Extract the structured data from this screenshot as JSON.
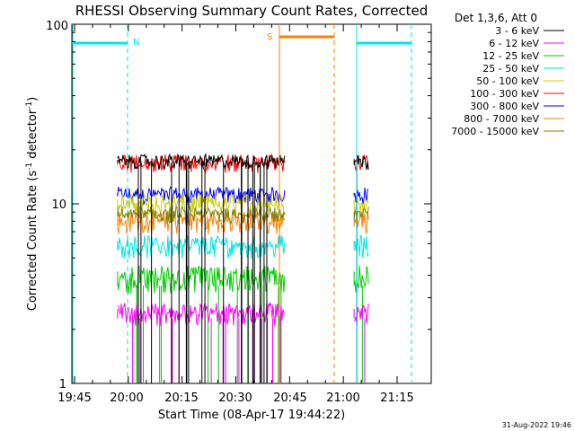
{
  "chart_data": {
    "type": "line",
    "title": "RHESSI Observing Summary Count Rates, Corrected",
    "xlabel": "Start Time (08-Apr-17 19:44:22)",
    "ylabel_main": "Corrected Count Rate (s",
    "ylabel_sup1": "-1",
    "ylabel_mid": " detector",
    "ylabel_sup2": "-1",
    "ylabel_end": ")",
    "y_scale": "log",
    "ylim": [
      1,
      100
    ],
    "xlim_minutes": [
      19.6,
      20.0
    ],
    "x_tick_labels": [
      "19:45",
      "20:00",
      "20:15",
      "20:30",
      "20:45",
      "21:00",
      "21:15"
    ],
    "y_tick_labels": [
      "1",
      "10",
      "100"
    ],
    "legend_title": "Det 1,3,6, Att 0",
    "legend_position": "top-right",
    "series": [
      {
        "name": "3 - 6 keV",
        "color": "#000000",
        "levels": [
          17,
          17.5
        ]
      },
      {
        "name": "6 - 12 keV",
        "color": "#ff00ff",
        "levels": [
          2.3,
          2.6
        ]
      },
      {
        "name": "12 - 25 keV",
        "color": "#00cc00",
        "levels": [
          3.5,
          4.2
        ]
      },
      {
        "name": "25 - 50 keV",
        "color": "#00e5e5",
        "levels": [
          5.5,
          6.2
        ]
      },
      {
        "name": "50 - 100 keV",
        "color": "#cccc00",
        "levels": [
          9.5,
          10.5
        ]
      },
      {
        "name": "100 - 300 keV",
        "color": "#ff0000",
        "levels": [
          16.5,
          17.5
        ]
      },
      {
        "name": "300 - 800 keV",
        "color": "#0000ff",
        "levels": [
          11,
          11.5
        ]
      },
      {
        "name": "800 - 7000 keV",
        "color": "#ff8000",
        "levels": [
          7.5,
          8.5
        ]
      },
      {
        "name": "7000 - 15000 keV",
        "color": "#808000",
        "levels": [
          8.5,
          9
        ]
      }
    ],
    "segments": [
      [
        19.95,
        20.73
      ],
      [
        21.05,
        21.12
      ]
    ],
    "annotations": {
      "night_label": "N",
      "saa_label": "S"
    },
    "footer_stamp": "31-Aug-2022 19:46"
  }
}
